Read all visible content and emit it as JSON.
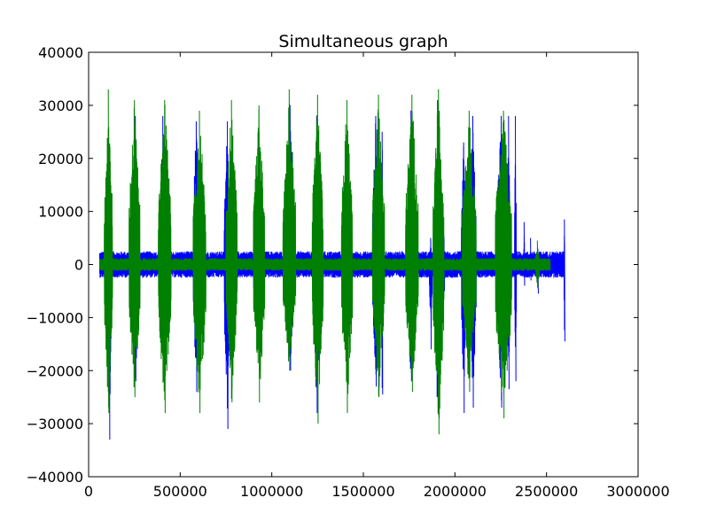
{
  "chart_data": {
    "type": "line",
    "title": "Simultaneous graph",
    "xlabel": "",
    "ylabel": "",
    "xlim": [
      0,
      3000000
    ],
    "ylim": [
      -40000,
      40000
    ],
    "xticks": [
      {
        "value": 0,
        "label": "0"
      },
      {
        "value": 500000,
        "label": "500000"
      },
      {
        "value": 1000000,
        "label": "1000000"
      },
      {
        "value": 1500000,
        "label": "1500000"
      },
      {
        "value": 2000000,
        "label": "2000000"
      },
      {
        "value": 2500000,
        "label": "2500000"
      },
      {
        "value": 3000000,
        "label": "3000000"
      }
    ],
    "yticks": [
      {
        "value": 40000,
        "label": "40000"
      },
      {
        "value": 30000,
        "label": "30000"
      },
      {
        "value": 20000,
        "label": "20000"
      },
      {
        "value": 10000,
        "label": "10000"
      },
      {
        "value": 0,
        "label": "0"
      },
      {
        "value": -10000,
        "label": "−10000"
      },
      {
        "value": -20000,
        "label": "−20000"
      },
      {
        "value": -30000,
        "label": "−30000"
      },
      {
        "value": -40000,
        "label": "−40000"
      }
    ],
    "grid": false,
    "legend": "none",
    "series": [
      {
        "color": "#0000ff",
        "x_range": [
          60000,
          2600000
        ],
        "baseline_amplitude": 2500,
        "bursts": [
          {
            "x": [
              100000,
              125000
            ],
            "max": 22000,
            "min": -33000
          },
          {
            "x": [
              235000,
              275000
            ],
            "max": 28000,
            "min": -22000
          },
          {
            "x": [
              385000,
              425000
            ],
            "max": 28000,
            "min": -22000
          },
          {
            "x": [
              570000,
              605000
            ],
            "max": 27000,
            "min": -24000
          },
          {
            "x": [
              740000,
              775000
            ],
            "max": 27000,
            "min": -31000
          },
          {
            "x": [
              900000,
              935000
            ],
            "max": 7500,
            "min": -13000
          },
          {
            "x": [
              1080000,
              1120000
            ],
            "max": 30000,
            "min": -20000
          },
          {
            "x": [
              1225000,
              1265000
            ],
            "max": 28000,
            "min": -28000
          },
          {
            "x": [
              1390000,
              1420000
            ],
            "max": 10500,
            "min": -14000
          },
          {
            "x": [
              1550000,
              1585000
            ],
            "max": 28000,
            "min": -23000
          },
          {
            "x": [
              1595000,
              1610000
            ],
            "max": 25000,
            "min": -24500
          },
          {
            "x": [
              1740000,
              1780000
            ],
            "max": 29000,
            "min": -22000
          },
          {
            "x": [
              1860000,
              1875000
            ],
            "max": 5000,
            "min": -16000
          },
          {
            "x": [
              1885000,
              1925000
            ],
            "max": 31000,
            "min": -28000
          },
          {
            "x": [
              1925000,
              1945000
            ],
            "max": 8000,
            "min": -10000
          },
          {
            "x": [
              2035000,
              2060000
            ],
            "max": 23000,
            "min": -28000
          },
          {
            "x": [
              2080000,
              2115000
            ],
            "max": 28000,
            "min": -27000
          },
          {
            "x": [
              2230000,
              2275000
            ],
            "max": 28000,
            "min": -27000
          },
          {
            "x": [
              2285000,
              2300000
            ],
            "max": 28000,
            "min": -23500
          },
          {
            "x": [
              2325000,
              2335000
            ],
            "max": 28000,
            "min": -22000
          },
          {
            "x": [
              2375000,
              2380000
            ],
            "max": 8000,
            "min": -4000
          },
          {
            "x": [
              2410000,
              2415000
            ],
            "max": 5000,
            "min": -3000
          },
          {
            "x": [
              2450000,
              2455000
            ],
            "max": 3000,
            "min": -5500
          },
          {
            "x": [
              2595000,
              2600000
            ],
            "max": 8500,
            "min": -14500
          }
        ]
      },
      {
        "color": "#008000",
        "x_range": [
          60000,
          2520000
        ],
        "baseline_amplitude": 1200,
        "bursts": [
          {
            "x": [
              85000,
              130000
            ],
            "max": 33000,
            "min": -28000
          },
          {
            "x": [
              220000,
              280000
            ],
            "max": 31000,
            "min": -25000
          },
          {
            "x": [
              380000,
              450000
            ],
            "max": 31000,
            "min": -28000
          },
          {
            "x": [
              570000,
              640000
            ],
            "max": 29000,
            "min": -28000
          },
          {
            "x": [
              750000,
              810000
            ],
            "max": 31000,
            "min": -26000
          },
          {
            "x": [
              900000,
              960000
            ],
            "max": 30000,
            "min": -26000
          },
          {
            "x": [
              1060000,
              1130000
            ],
            "max": 33000,
            "min": -20000
          },
          {
            "x": [
              1220000,
              1280000
            ],
            "max": 32000,
            "min": -30000
          },
          {
            "x": [
              1380000,
              1440000
            ],
            "max": 31000,
            "min": -28000
          },
          {
            "x": [
              1550000,
              1615000
            ],
            "max": 32000,
            "min": -25000
          },
          {
            "x": [
              1730000,
              1800000
            ],
            "max": 32000,
            "min": -24000
          },
          {
            "x": [
              1880000,
              1940000
            ],
            "max": 33000,
            "min": -32000
          },
          {
            "x": [
              2040000,
              2115000
            ],
            "max": 29000,
            "min": -24000
          },
          {
            "x": [
              2220000,
              2310000
            ],
            "max": 29000,
            "min": -29000
          },
          {
            "x": [
              2440000,
              2460000
            ],
            "max": 4500,
            "min": -4500
          }
        ]
      }
    ]
  }
}
